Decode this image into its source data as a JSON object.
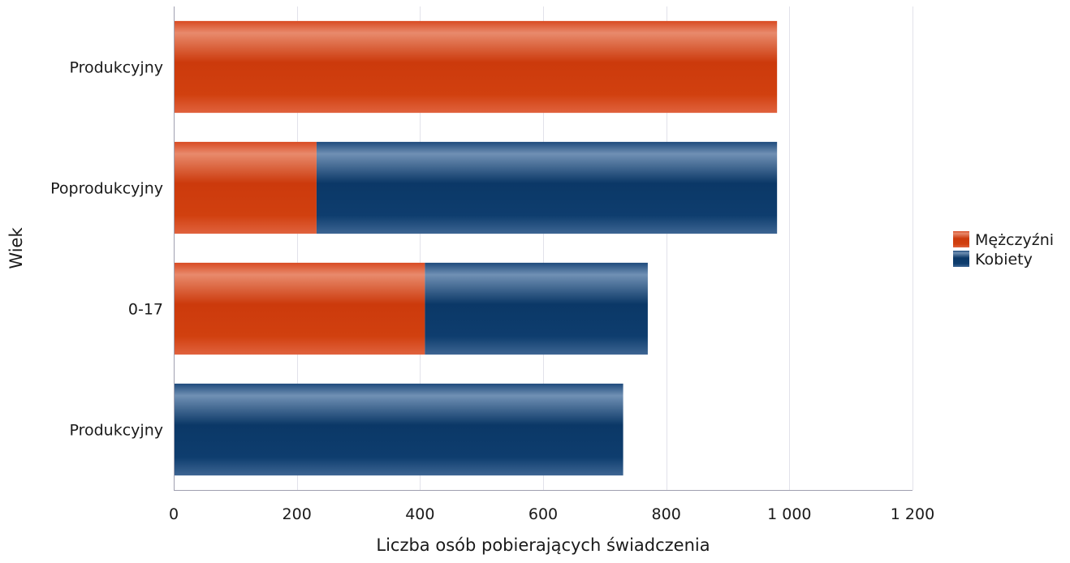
{
  "chart_data": {
    "type": "bar",
    "orientation": "horizontal",
    "stacked": true,
    "categories": [
      "Produkcyjny",
      "Poprodukcyjny",
      "0-17",
      "Produkcyjny"
    ],
    "series": [
      {
        "name": "Mężczyźni",
        "values": [
          980,
          232,
          408,
          0
        ],
        "color": "#d03a10"
      },
      {
        "name": "Kobiety",
        "values": [
          0,
          748,
          362,
          730
        ],
        "color": "#0c3a6b"
      }
    ],
    "xlabel": "Liczba osób pobierających świadczenia",
    "ylabel": "Wiek",
    "xlim": [
      0,
      1200
    ],
    "xticks": [
      0,
      200,
      400,
      600,
      800,
      1000,
      1200
    ],
    "xtick_labels": [
      "0",
      "200",
      "400",
      "600",
      "800",
      "1 000",
      "1 200"
    ],
    "grid": true,
    "legend_position": "right"
  }
}
